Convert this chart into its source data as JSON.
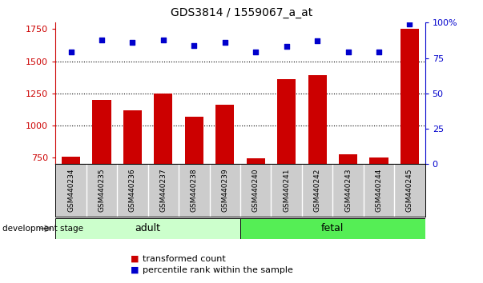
{
  "title": "GDS3814 / 1559067_a_at",
  "samples": [
    "GSM440234",
    "GSM440235",
    "GSM440236",
    "GSM440237",
    "GSM440238",
    "GSM440239",
    "GSM440240",
    "GSM440241",
    "GSM440242",
    "GSM440243",
    "GSM440244",
    "GSM440245"
  ],
  "transformed_count": [
    755,
    1200,
    1120,
    1250,
    1070,
    1160,
    745,
    1360,
    1390,
    775,
    750,
    1750
  ],
  "percentile_rank": [
    79,
    88,
    86,
    88,
    84,
    86,
    79,
    83,
    87,
    79,
    79,
    99
  ],
  "bar_color": "#cc0000",
  "dot_color": "#0000cc",
  "ylim_left": [
    700,
    1800
  ],
  "ylim_right": [
    0,
    100
  ],
  "yticks_left": [
    750,
    1000,
    1250,
    1500,
    1750
  ],
  "yticks_right": [
    0,
    25,
    50,
    75,
    100
  ],
  "grid_values": [
    1000,
    1250,
    1500
  ],
  "adult_label": "adult",
  "fetal_label": "fetal",
  "adult_color": "#ccffcc",
  "fetal_color": "#55ee55",
  "sample_bg_color": "#cccccc",
  "dev_stage_label": "development stage",
  "legend_bar_label": "transformed count",
  "legend_dot_label": "percentile rank within the sample",
  "title_fontsize": 10,
  "axis_color_left": "#cc0000",
  "axis_color_right": "#0000cc",
  "bar_width": 0.6,
  "base_value": 700
}
